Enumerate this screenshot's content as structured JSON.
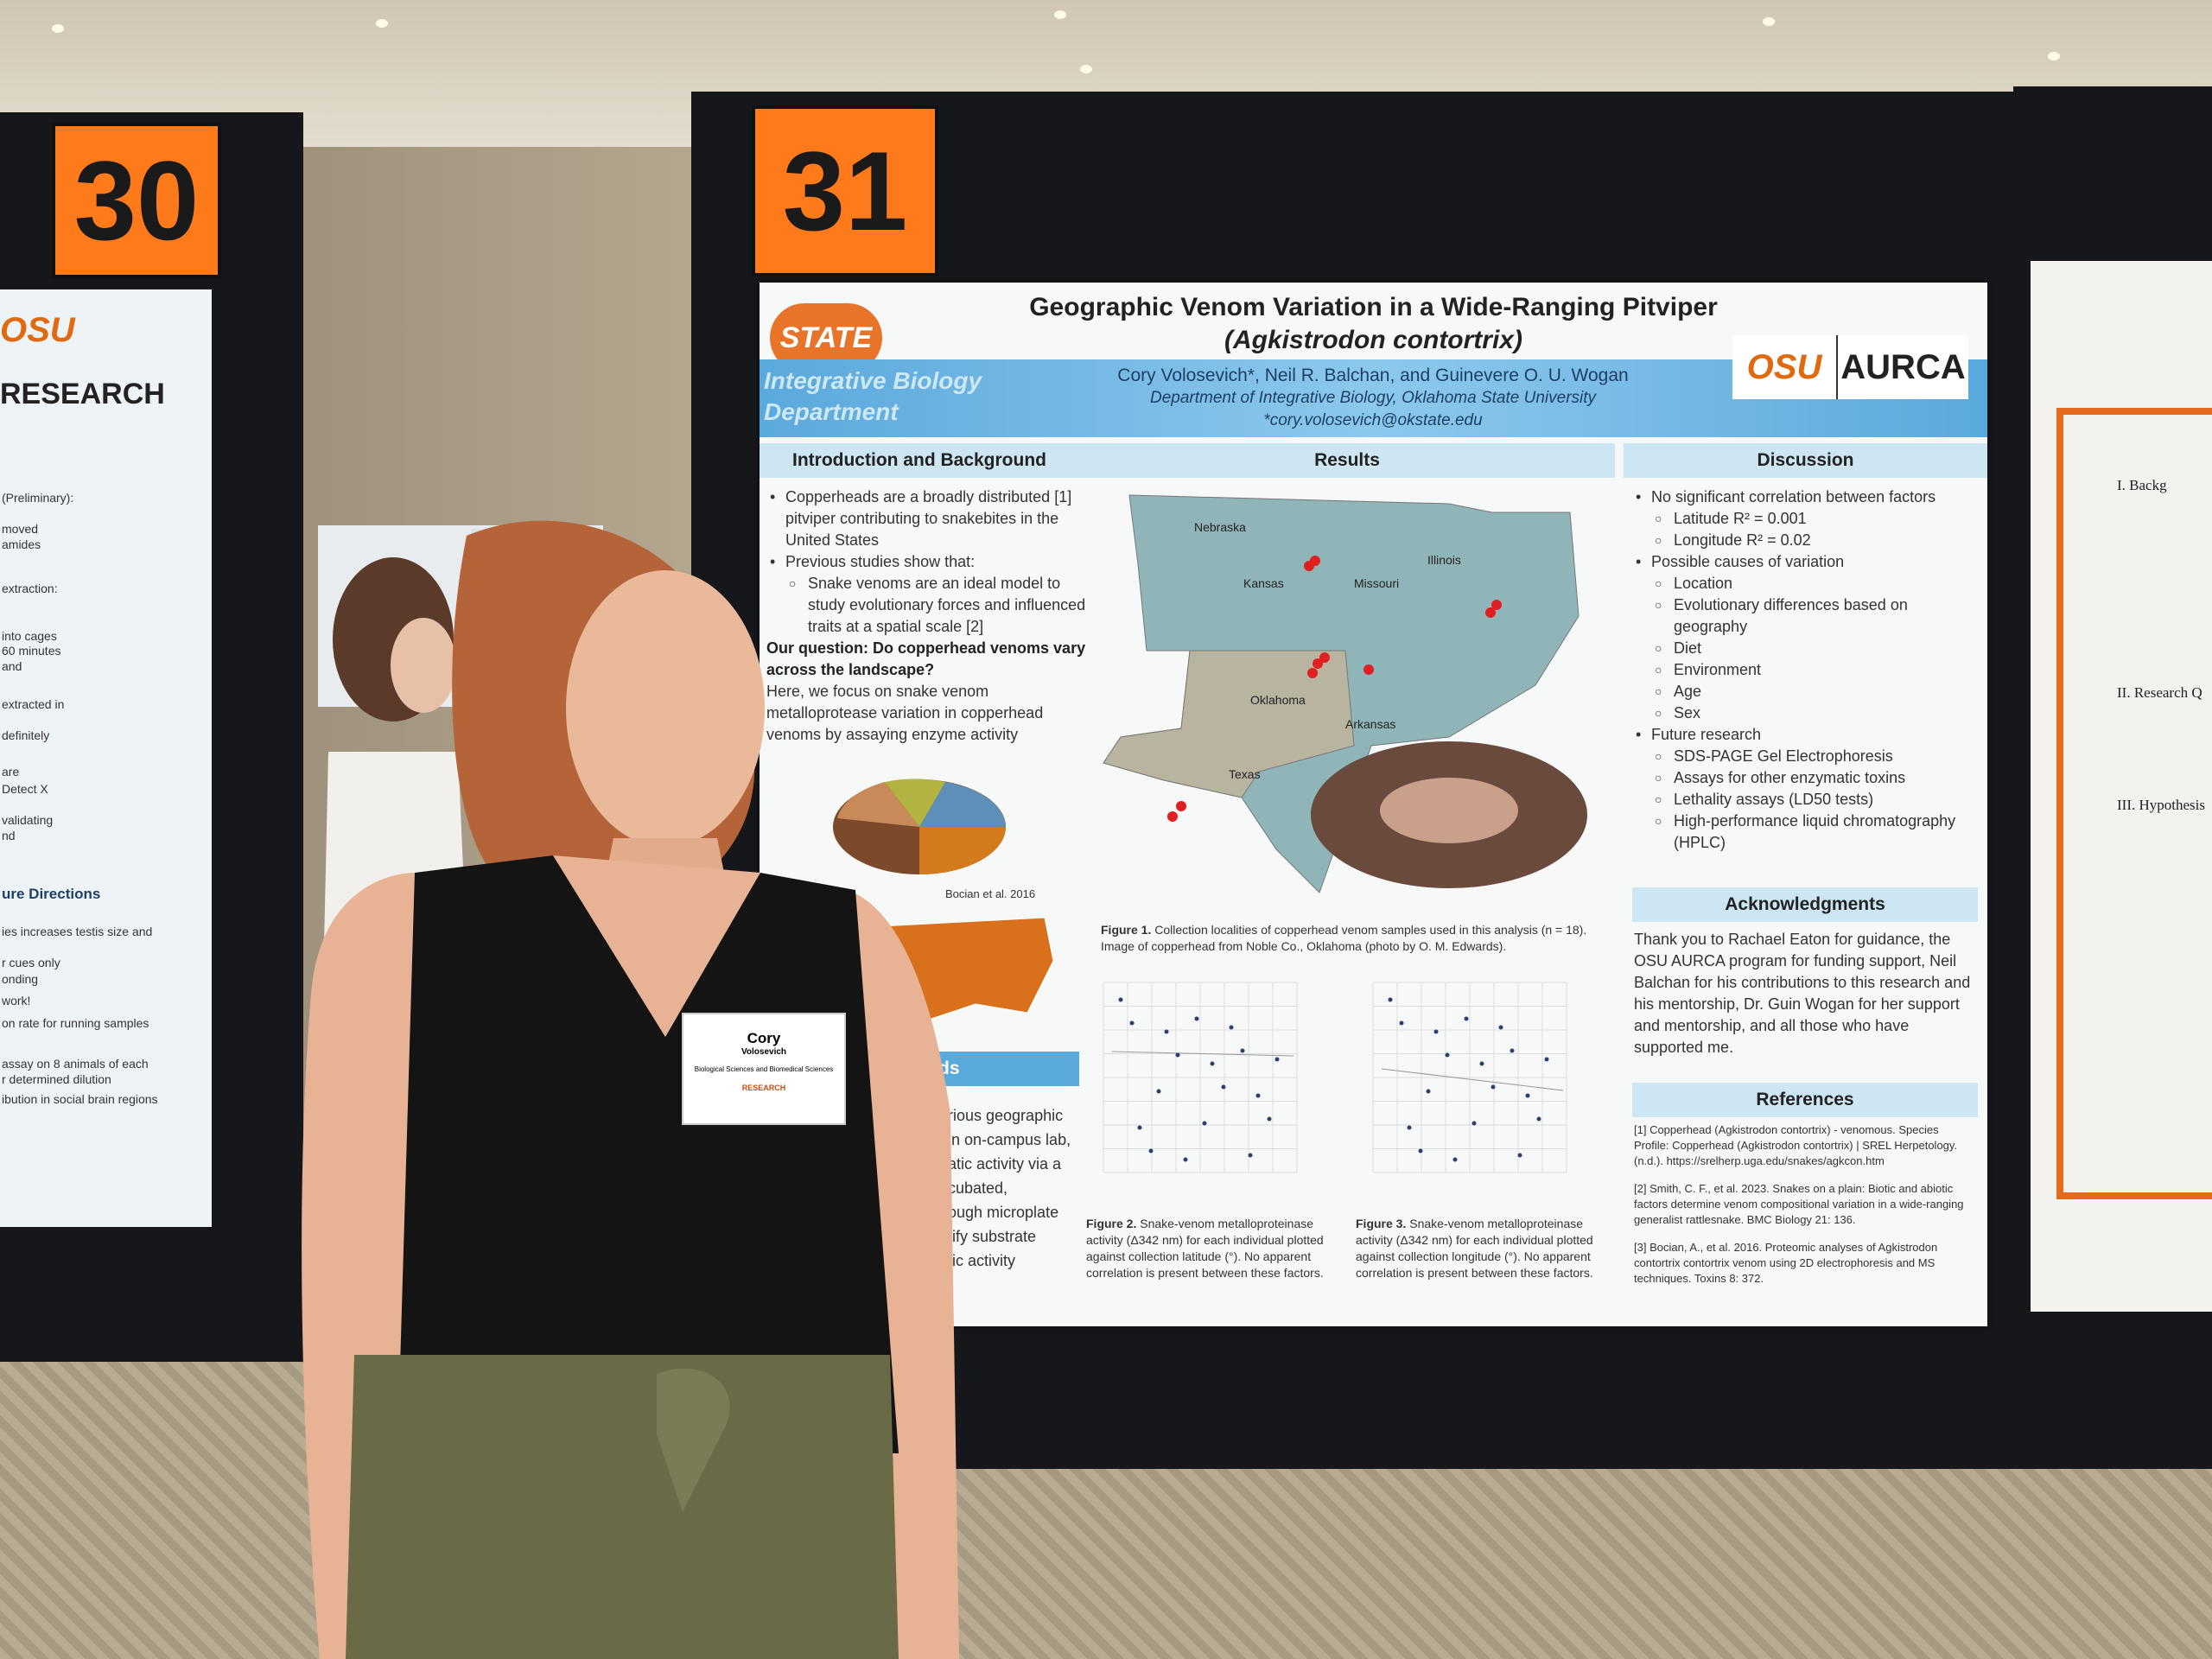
{
  "poster_30": {
    "number": "30",
    "logo": "OSU",
    "heading": "RESEARCH",
    "lines": [
      "(Preliminary):",
      "moved",
      "amides",
      "extraction:",
      "into cages",
      "60 minutes",
      "and",
      "extracted in",
      "definitely",
      "are",
      "Detect X",
      "validating",
      "nd"
    ],
    "section": "ure Directions",
    "section_lines": [
      "ies increases testis size and",
      "r cues only",
      "onding",
      "work!",
      "on rate for running samples",
      "assay on 8 animals of each",
      "r determined dilution",
      "ibution in social brain regions"
    ]
  },
  "poster_31": {
    "number": "31",
    "logo_text": "STATE",
    "title": "Geographic Venom Variation in a Wide-Ranging Pitviper",
    "species": "(Agkistrodon contortrix)",
    "department_banner": "Integrative Biology Department",
    "authors": "Cory Volosevich*, Neil R. Balchan, and Guinevere O. U. Wogan",
    "affiliation": "Department of Integrative Biology, Oklahoma State University",
    "email": "*cory.volosevich@okstate.edu",
    "partner_logos": [
      "OSU",
      "AURCA"
    ],
    "introduction": {
      "heading": "Introduction and Background",
      "items": [
        {
          "text": "Copperheads are a broadly distributed [1] pitviper contributing to snakebites in the United States"
        },
        {
          "text": "Previous studies show that:",
          "sub": [
            "Snake venoms are an ideal model to study evolutionary forces and influenced traits at a spatial scale [2]"
          ]
        }
      ],
      "question": "Our question: Do copperhead venoms vary across the landscape?",
      "focus": "Here, we focus on snake venom metalloprotease variation in copperhead venoms by assaying enzyme activity",
      "pie_credit": "Bocian et al. 2016"
    },
    "methods": {
      "heading": "ds",
      "lines": [
        "rious geographic",
        "in on-campus lab,",
        "atic activity via a",
        "cubated,",
        "ough microplate",
        "tify substrate",
        "tic activity"
      ]
    },
    "results": {
      "heading": "Results",
      "map_labels": [
        "Nebraska",
        "Kansas",
        "Oklahoma",
        "Texas",
        "Missouri",
        "Arkansas",
        "Illinois"
      ],
      "figure_1": {
        "label": "Figure 1.",
        "caption": "Collection localities of copperhead venom samples used in this analysis (n = 18). Image of copperhead from Noble Co., Oklahoma (photo by O. M. Edwards)."
      },
      "figure_2": {
        "label": "Figure 2.",
        "caption": "Snake-venom metalloproteinase activity (Δ342 nm) for each individual plotted against collection latitude (°). No apparent correlation is present between these factors."
      },
      "figure_3": {
        "label": "Figure 3.",
        "caption": "Snake-venom metalloproteinase activity (Δ342 nm) for each individual plotted against collection longitude (°). No apparent correlation is present between these factors."
      }
    },
    "discussion": {
      "heading": "Discussion",
      "items": [
        {
          "text": "No significant correlation between factors",
          "sub": [
            "Latitude R² = 0.001",
            "Longitude R² = 0.02"
          ]
        },
        {
          "text": "Possible causes of variation",
          "sub": [
            "Location",
            "Evolutionary differences based on geography",
            "Diet",
            "Environment",
            "Age",
            "Sex"
          ]
        },
        {
          "text": "Future research",
          "sub": [
            "SDS-PAGE Gel Electrophoresis",
            "Assays for other enzymatic toxins",
            "Lethality assays (LD50 tests)",
            "High-performance liquid chromatography (HPLC)"
          ]
        }
      ]
    },
    "acknowledgments": {
      "heading": "Acknowledgments",
      "text": "Thank you to Rachael Eaton for guidance, the OSU AURCA program for funding support, Neil Balchan for his contributions to this research and his mentorship, Dr. Guin Wogan for her support and mentorship, and all those who have supported me."
    },
    "references": {
      "heading": "References",
      "items": [
        "[1] Copperhead (Agkistrodon contortrix) - venomous. Species Profile: Copperhead (Agkistrodon contortrix) | SREL Herpetology. (n.d.). https://srelherp.uga.edu/snakes/agkcon.htm",
        "[2] Smith, C. F., et al. 2023. Snakes on a plain: Biotic and abiotic factors determine venom compositional variation in a wide-ranging generalist rattlesnake. BMC Biology 21: 136.",
        "[3] Bocian, A., et al. 2016. Proteomic analyses of Agkistrodon contortrix contortrix venom using 2D electrophoresis and MS techniques. Toxins 8: 372."
      ]
    }
  },
  "poster_32": {
    "lines": [
      "I. Backg",
      "II. Research Q",
      "III. Hypothesis"
    ]
  },
  "badge": {
    "first_name": "Cory",
    "last_name": "Volosevich",
    "department": "Biological Sciences and Biomedical Sciences",
    "program": "RESEARCH"
  }
}
